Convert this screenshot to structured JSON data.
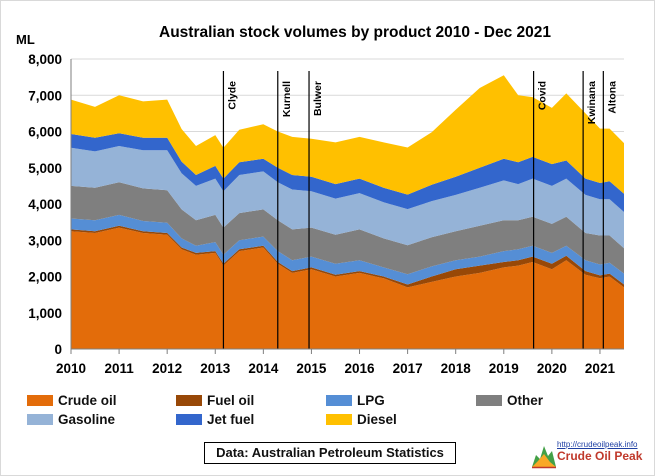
{
  "chart_data": {
    "type": "area",
    "stacked": true,
    "title": "Australian stock volumes by product 2010 - Dec 2021",
    "ylabel": "ML",
    "ylim": [
      0,
      8000
    ],
    "yticks": [
      0,
      1000,
      2000,
      3000,
      4000,
      5000,
      6000,
      7000,
      8000
    ],
    "ytick_labels": [
      "0",
      "1,000",
      "2,000",
      "3,000",
      "4,000",
      "5,000",
      "6,000",
      "7,000",
      "8,000"
    ],
    "xlim": [
      2010.0,
      2021.5
    ],
    "xticks": [
      2010,
      2011,
      2012,
      2013,
      2014,
      2015,
      2016,
      2017,
      2018,
      2019,
      2020,
      2021
    ],
    "xtick_labels": [
      "2010",
      "2011",
      "2012",
      "2013",
      "2014",
      "2015",
      "2016",
      "2017",
      "2018",
      "2019",
      "2020",
      "2021"
    ],
    "grid": "horizontal",
    "x": [
      2010.0,
      2010.5,
      2011.0,
      2011.5,
      2012.0,
      2012.3,
      2012.6,
      2013.0,
      2013.17,
      2013.5,
      2014.0,
      2014.3,
      2014.6,
      2015.0,
      2015.5,
      2016.0,
      2016.5,
      2017.0,
      2017.5,
      2018.0,
      2018.5,
      2019.0,
      2019.3,
      2019.6,
      2020.0,
      2020.3,
      2020.7,
      2021.0,
      2021.2,
      2021.5
    ],
    "series": [
      {
        "name": "Crude oil",
        "color": "#e36c0a",
        "values": [
          3250,
          3200,
          3350,
          3200,
          3150,
          2750,
          2600,
          2650,
          2300,
          2700,
          2800,
          2350,
          2100,
          2200,
          2000,
          2100,
          1950,
          1700,
          1850,
          2000,
          2100,
          2250,
          2300,
          2400,
          2200,
          2450,
          2050,
          1950,
          2000,
          1700
        ]
      },
      {
        "name": "Fuel oil",
        "color": "#984807",
        "values": [
          50,
          50,
          50,
          50,
          50,
          50,
          50,
          50,
          50,
          50,
          50,
          50,
          50,
          50,
          50,
          50,
          50,
          80,
          150,
          200,
          200,
          150,
          150,
          150,
          150,
          120,
          100,
          80,
          80,
          80
        ]
      },
      {
        "name": "LPG",
        "color": "#558ed5",
        "values": [
          300,
          300,
          300,
          280,
          280,
          250,
          200,
          250,
          250,
          250,
          250,
          300,
          300,
          300,
          300,
          300,
          250,
          280,
          280,
          250,
          250,
          300,
          300,
          300,
          300,
          280,
          300,
          300,
          300,
          300
        ]
      },
      {
        "name": "Other",
        "color": "#7f7f7f",
        "values": [
          900,
          900,
          900,
          900,
          900,
          800,
          700,
          750,
          750,
          750,
          750,
          850,
          850,
          800,
          800,
          850,
          800,
          800,
          800,
          800,
          850,
          850,
          800,
          800,
          800,
          800,
          750,
          800,
          750,
          700
        ]
      },
      {
        "name": "Gasoline",
        "color": "#95b3d7",
        "values": [
          1050,
          1000,
          1000,
          1050,
          1100,
          1000,
          950,
          1000,
          1000,
          1050,
          1050,
          1050,
          1100,
          1000,
          1000,
          1000,
          1000,
          1000,
          1000,
          1000,
          1050,
          1100,
          1000,
          1050,
          1050,
          1050,
          1050,
          1000,
          1000,
          1000
        ]
      },
      {
        "name": "Jet fuel",
        "color": "#3366cc",
        "values": [
          380,
          380,
          350,
          350,
          350,
          320,
          300,
          350,
          350,
          350,
          350,
          400,
          400,
          400,
          400,
          400,
          400,
          400,
          450,
          500,
          550,
          600,
          600,
          600,
          600,
          500,
          450,
          450,
          500,
          500
        ]
      },
      {
        "name": "Diesel",
        "color": "#ffc000",
        "values": [
          950,
          850,
          1050,
          1000,
          1050,
          900,
          800,
          850,
          850,
          900,
          950,
          1000,
          1050,
          1050,
          1150,
          1150,
          1250,
          1300,
          1450,
          1850,
          2200,
          2300,
          1850,
          1650,
          1550,
          1850,
          1800,
          1500,
          1450,
          1400
        ]
      }
    ],
    "annotations": [
      {
        "label": "Clyde",
        "x": 2013.17
      },
      {
        "label": "Kurnell",
        "x": 2014.3
      },
      {
        "label": "Bulwer",
        "x": 2014.95
      },
      {
        "label": "Covid",
        "x": 2019.62
      },
      {
        "label": "Kwinana",
        "x": 2020.65
      },
      {
        "label": "Altona",
        "x": 2021.07
      }
    ],
    "legend": "bottom",
    "source_label": "Data: Australian Petroleum Statistics"
  },
  "logo": {
    "url": "http://crudeoilpeak.info",
    "name": "Crude Oil Peak"
  }
}
